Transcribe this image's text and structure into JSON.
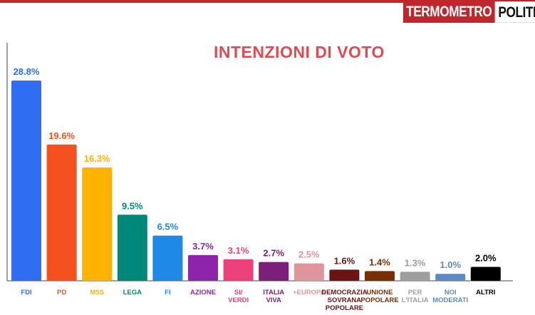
{
  "brand": {
    "part1": "TERMOMETRO",
    "part2": "POLITICO",
    "color_red": "#c0272d"
  },
  "chart_data": {
    "type": "bar",
    "title": "INTENZIONI DI VOTO",
    "xlabel": "",
    "ylabel": "",
    "ylim": [
      0,
      30
    ],
    "grid": false,
    "legend": "none",
    "categories": [
      [
        "FDI"
      ],
      [
        "PD"
      ],
      [
        "M5S"
      ],
      [
        "LEGA"
      ],
      [
        "FI"
      ],
      [
        "AZIONE"
      ],
      [
        "SI/",
        "VERDI"
      ],
      [
        "ITALIA",
        "VIVA"
      ],
      [
        "+EUROPA"
      ],
      [
        "DEMOCRAZIA",
        "SOVRANA",
        "POPOLARE"
      ],
      [
        "UNIONE",
        "POPOLARE"
      ],
      [
        "PER",
        "L'ITALIA"
      ],
      [
        "NOI",
        "MODERATI"
      ],
      [
        "ALTRI"
      ]
    ],
    "values": [
      28.8,
      19.6,
      16.3,
      9.5,
      6.5,
      3.7,
      3.1,
      2.7,
      2.5,
      1.6,
      1.4,
      1.3,
      1.0,
      2.0
    ],
    "value_labels": [
      "28.8%",
      "19.6%",
      "16.3%",
      "9.5%",
      "6.5%",
      "3.7%",
      "3.1%",
      "2.7%",
      "2.5%",
      "1.6%",
      "1.4%",
      "1.3%",
      "1.0%",
      "2.0%"
    ],
    "colors": [
      "#2f6df2",
      "#f4511e",
      "#ffb300",
      "#00897b",
      "#1e88e5",
      "#8e24aa",
      "#ec407a",
      "#7b1f7a",
      "#e0959a",
      "#6b1414",
      "#7a2e08",
      "#9e9e9e",
      "#5d89c4",
      "#000000"
    ],
    "label_colors": [
      "#2f6df2",
      "#f4511e",
      "#ffb300",
      "#00897b",
      "#1e88e5",
      "#8e24aa",
      "#ec407a",
      "#7b1f7a",
      "#e0959a",
      "#6b1414",
      "#7a2e08",
      "#9e9e9e",
      "#5d89c4",
      "#000000"
    ]
  }
}
